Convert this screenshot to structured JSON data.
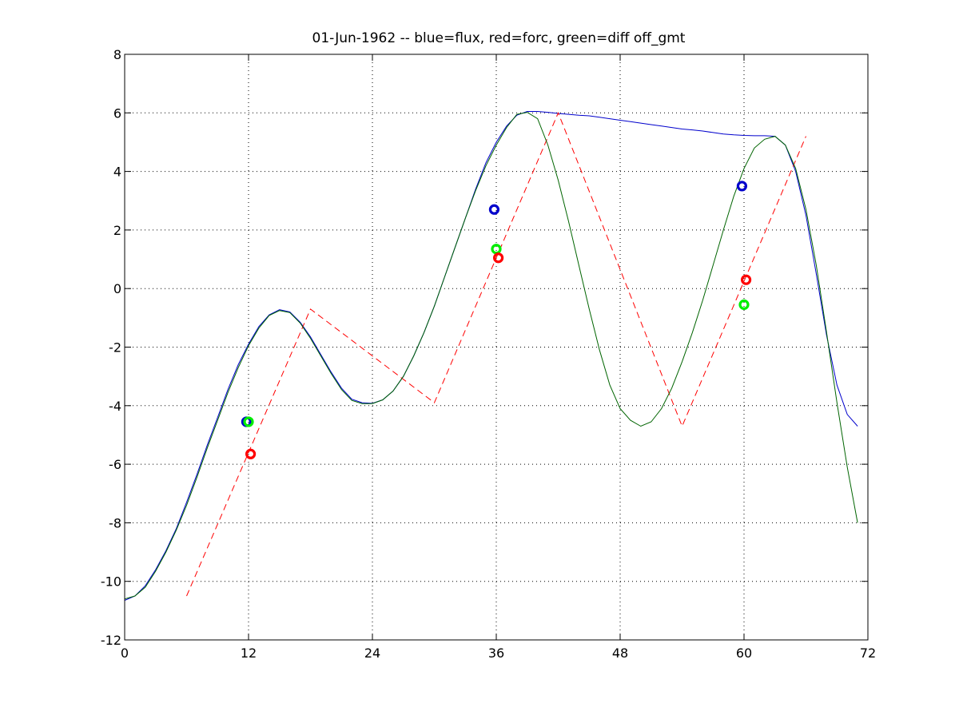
{
  "chart_data": {
    "type": "line",
    "title": "01-Jun-1962 -- blue=flux, red=forc, green=diff off_gmt",
    "xlabel": "",
    "ylabel": "",
    "xlim": [
      0,
      72
    ],
    "ylim": [
      -12,
      8
    ],
    "xticks": [
      0,
      12,
      24,
      36,
      48,
      60,
      72
    ],
    "yticks": [
      -12,
      -10,
      -8,
      -6,
      -4,
      -2,
      0,
      2,
      4,
      6,
      8
    ],
    "grid": true,
    "colors": {
      "blue": "#0000cc",
      "red": "#ff0000",
      "green": "#006400",
      "green_marker": "#00ee00"
    },
    "series": [
      {
        "color": "blue",
        "style": "solid",
        "x": [
          0,
          1,
          2,
          3,
          4,
          5,
          6,
          7,
          8,
          9,
          10,
          11,
          12,
          13,
          14,
          15,
          16,
          17,
          18,
          19,
          20,
          21,
          22,
          23,
          24,
          25,
          26,
          27,
          28,
          29,
          30,
          31,
          32,
          33,
          34,
          35,
          36,
          37,
          38,
          39,
          40,
          41,
          42,
          43,
          44,
          45,
          46,
          47,
          48,
          49,
          50,
          51,
          52,
          53,
          54,
          55,
          56,
          57,
          58,
          59,
          60,
          61,
          62,
          63,
          64,
          65,
          66,
          67,
          68,
          69,
          70,
          71
        ],
        "y": [
          -10.65,
          -10.5,
          -10.15,
          -9.6,
          -8.95,
          -8.2,
          -7.3,
          -6.35,
          -5.35,
          -4.4,
          -3.45,
          -2.6,
          -1.9,
          -1.3,
          -0.9,
          -0.72,
          -0.8,
          -1.15,
          -1.65,
          -2.25,
          -2.85,
          -3.4,
          -3.78,
          -3.9,
          -3.92,
          -3.8,
          -3.5,
          -3.0,
          -2.3,
          -1.5,
          -0.6,
          0.4,
          1.4,
          2.4,
          3.4,
          4.3,
          5.0,
          5.55,
          5.92,
          6.05,
          6.05,
          6.02,
          5.98,
          5.95,
          5.92,
          5.9,
          5.85,
          5.8,
          5.75,
          5.7,
          5.65,
          5.6,
          5.55,
          5.5,
          5.45,
          5.42,
          5.38,
          5.33,
          5.28,
          5.25,
          5.23,
          5.22,
          5.22,
          5.2,
          4.9,
          4.0,
          2.5,
          0.5,
          -1.6,
          -3.3,
          -4.3,
          -4.7
        ]
      },
      {
        "color": "red",
        "style": "dashed",
        "x": [
          6,
          18,
          30,
          42,
          54,
          66
        ],
        "y": [
          -10.5,
          -0.7,
          -3.9,
          6.0,
          -4.7,
          5.2
        ]
      },
      {
        "color": "green",
        "style": "solid",
        "x": [
          0,
          1,
          2,
          3,
          4,
          5,
          6,
          7,
          8,
          9,
          10,
          11,
          12,
          13,
          14,
          15,
          16,
          17,
          18,
          19,
          20,
          21,
          22,
          23,
          24,
          25,
          26,
          27,
          28,
          29,
          30,
          31,
          32,
          33,
          34,
          35,
          36,
          37,
          38,
          39,
          40,
          41,
          42,
          43,
          44,
          45,
          46,
          47,
          48,
          49,
          50,
          51,
          52,
          53,
          54,
          55,
          56,
          57,
          58,
          59,
          60,
          61,
          62,
          63,
          64,
          65,
          66,
          67,
          68,
          69,
          70,
          71
        ],
        "y": [
          -10.6,
          -10.5,
          -10.2,
          -9.65,
          -9.0,
          -8.25,
          -7.4,
          -6.45,
          -5.45,
          -4.5,
          -3.55,
          -2.7,
          -1.95,
          -1.35,
          -0.92,
          -0.75,
          -0.82,
          -1.18,
          -1.7,
          -2.3,
          -2.9,
          -3.45,
          -3.82,
          -3.93,
          -3.93,
          -3.8,
          -3.5,
          -3.0,
          -2.3,
          -1.5,
          -0.6,
          0.4,
          1.4,
          2.4,
          3.35,
          4.2,
          4.9,
          5.5,
          5.95,
          6.02,
          5.8,
          4.9,
          3.7,
          2.3,
          0.8,
          -0.7,
          -2.1,
          -3.3,
          -4.1,
          -4.5,
          -4.7,
          -4.55,
          -4.1,
          -3.4,
          -2.5,
          -1.5,
          -0.4,
          0.8,
          2.0,
          3.15,
          4.1,
          4.8,
          5.1,
          5.2,
          4.9,
          4.1,
          2.7,
          0.8,
          -1.5,
          -3.9,
          -6.1,
          -8.0
        ]
      }
    ],
    "markers": [
      {
        "color": "blue",
        "x": 11.8,
        "y": -4.55
      },
      {
        "color": "green_marker",
        "x": 12.0,
        "y": -4.55
      },
      {
        "color": "red",
        "x": 12.2,
        "y": -5.65
      },
      {
        "color": "blue",
        "x": 35.8,
        "y": 2.7
      },
      {
        "color": "green_marker",
        "x": 36.0,
        "y": 1.35
      },
      {
        "color": "red",
        "x": 36.2,
        "y": 1.05
      },
      {
        "color": "blue",
        "x": 59.8,
        "y": 3.5
      },
      {
        "color": "green_marker",
        "x": 60.0,
        "y": -0.55
      },
      {
        "color": "red",
        "x": 60.2,
        "y": 0.3
      }
    ]
  }
}
